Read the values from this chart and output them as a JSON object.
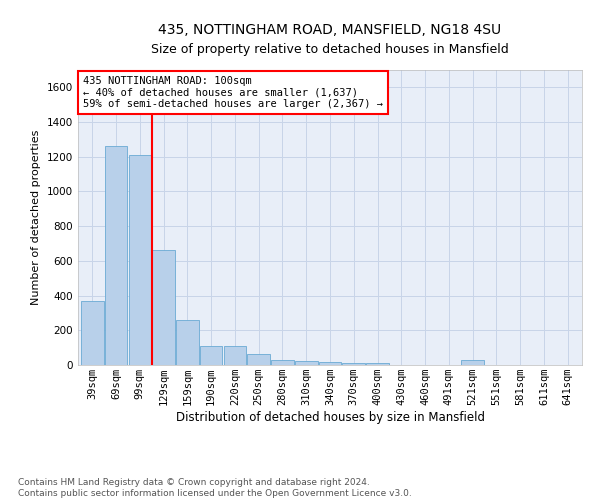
{
  "title1": "435, NOTTINGHAM ROAD, MANSFIELD, NG18 4SU",
  "title2": "Size of property relative to detached houses in Mansfield",
  "xlabel": "Distribution of detached houses by size in Mansfield",
  "ylabel": "Number of detached properties",
  "footnote": "Contains HM Land Registry data © Crown copyright and database right 2024.\nContains public sector information licensed under the Open Government Licence v3.0.",
  "categories": [
    "39sqm",
    "69sqm",
    "99sqm",
    "129sqm",
    "159sqm",
    "190sqm",
    "220sqm",
    "250sqm",
    "280sqm",
    "310sqm",
    "340sqm",
    "370sqm",
    "400sqm",
    "430sqm",
    "460sqm",
    "491sqm",
    "521sqm",
    "551sqm",
    "581sqm",
    "611sqm",
    "641sqm"
  ],
  "bar_values": [
    370,
    1260,
    1210,
    660,
    260,
    110,
    110,
    65,
    30,
    25,
    15,
    10,
    12,
    0,
    0,
    0,
    28,
    0,
    0,
    0,
    0
  ],
  "bar_color": "#b8d0ea",
  "bar_edge_color": "#6aaad4",
  "grid_color": "#c8d4e8",
  "bg_color": "#e8eef8",
  "annotation_box_text": "435 NOTTINGHAM ROAD: 100sqm\n← 40% of detached houses are smaller (1,637)\n59% of semi-detached houses are larger (2,367) →",
  "annotation_box_color": "red",
  "vline_x_index": 2,
  "vline_color": "red",
  "ylim": [
    0,
    1700
  ],
  "yticks": [
    0,
    200,
    400,
    600,
    800,
    1000,
    1200,
    1400,
    1600
  ],
  "title1_fontsize": 10,
  "title2_fontsize": 9,
  "xlabel_fontsize": 8.5,
  "ylabel_fontsize": 8,
  "tick_fontsize": 7.5,
  "annotation_fontsize": 7.5,
  "footnote_fontsize": 6.5
}
